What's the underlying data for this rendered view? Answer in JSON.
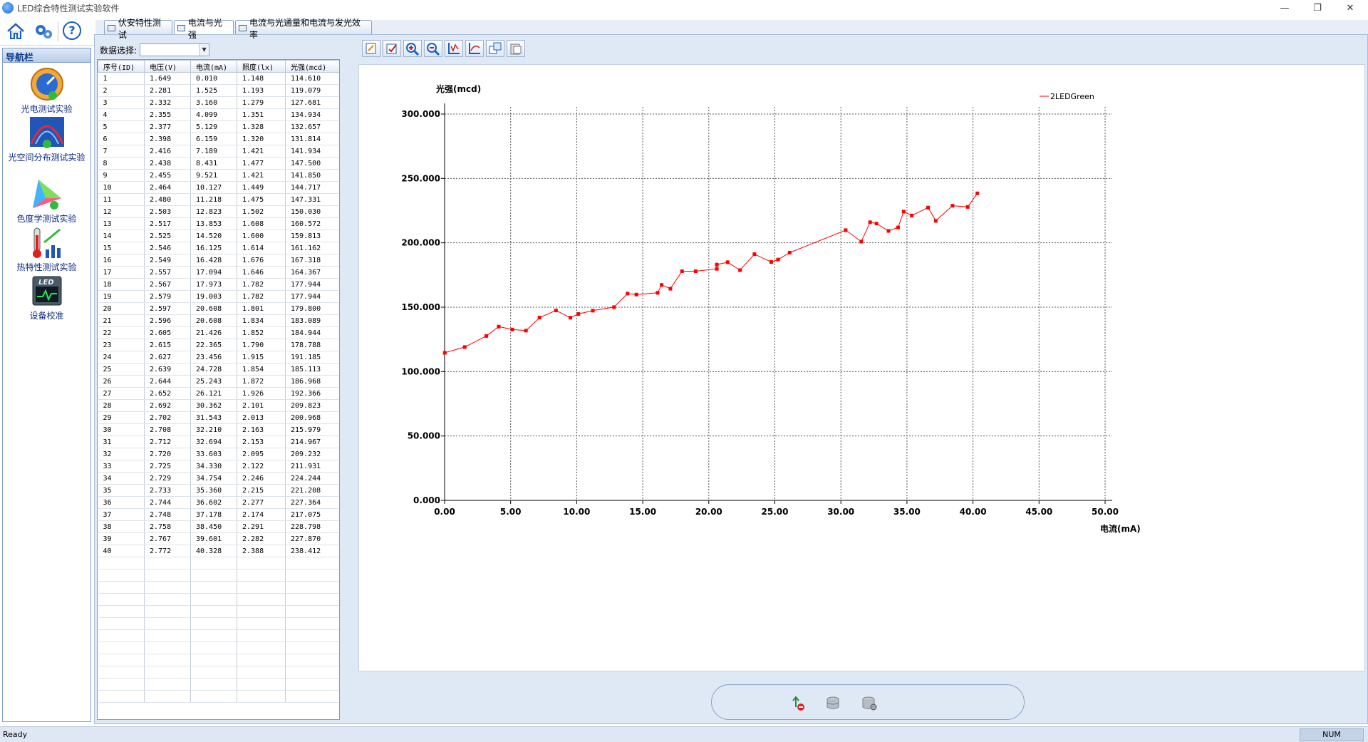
{
  "window": {
    "title": "LED综合特性测试实验软件",
    "minimize": "—",
    "maximize": "❐",
    "close": "✕"
  },
  "toolbar": {
    "icons": [
      "home-icon",
      "settings-icon",
      "help-icon"
    ],
    "help_glyph": "?"
  },
  "nav": {
    "header": "导航栏",
    "items": [
      {
        "label": "光电测试实验",
        "icon": "gauge-icon"
      },
      {
        "label": "光空间分布测试实验",
        "icon": "spatial-icon"
      },
      {
        "label": "色度学测试实验",
        "icon": "chromaticity-icon"
      },
      {
        "label": "热特性测试实验",
        "icon": "thermal-icon"
      },
      {
        "label": "设备校准",
        "icon": "calibration-icon"
      }
    ]
  },
  "tabs": [
    {
      "label": "伏安特性测试"
    },
    {
      "label": "电流与光强"
    },
    {
      "label": "电流与光通量和电流与发光效率"
    }
  ],
  "active_tab": 1,
  "data_select": {
    "label": "数据选择:",
    "value": ""
  },
  "table": {
    "columns": [
      "序号(ID)",
      "电压(V)",
      "电流(mA)",
      "照度(lx)",
      "光强(mcd)"
    ],
    "rows": [
      [
        "1",
        "1.649",
        "0.010",
        "1.148",
        "114.610"
      ],
      [
        "2",
        "2.281",
        "1.525",
        "1.193",
        "119.079"
      ],
      [
        "3",
        "2.332",
        "3.160",
        "1.279",
        "127.681"
      ],
      [
        "4",
        "2.355",
        "4.099",
        "1.351",
        "134.934"
      ],
      [
        "5",
        "2.377",
        "5.129",
        "1.328",
        "132.657"
      ],
      [
        "6",
        "2.398",
        "6.159",
        "1.320",
        "131.814"
      ],
      [
        "7",
        "2.416",
        "7.189",
        "1.421",
        "141.934"
      ],
      [
        "8",
        "2.438",
        "8.431",
        "1.477",
        "147.500"
      ],
      [
        "9",
        "2.455",
        "9.521",
        "1.421",
        "141.850"
      ],
      [
        "10",
        "2.464",
        "10.127",
        "1.449",
        "144.717"
      ],
      [
        "11",
        "2.480",
        "11.218",
        "1.475",
        "147.331"
      ],
      [
        "12",
        "2.503",
        "12.823",
        "1.502",
        "150.030"
      ],
      [
        "13",
        "2.517",
        "13.853",
        "1.608",
        "160.572"
      ],
      [
        "14",
        "2.525",
        "14.520",
        "1.600",
        "159.813"
      ],
      [
        "15",
        "2.546",
        "16.125",
        "1.614",
        "161.162"
      ],
      [
        "16",
        "2.549",
        "16.428",
        "1.676",
        "167.318"
      ],
      [
        "17",
        "2.557",
        "17.094",
        "1.646",
        "164.367"
      ],
      [
        "18",
        "2.567",
        "17.973",
        "1.782",
        "177.944"
      ],
      [
        "19",
        "2.579",
        "19.003",
        "1.782",
        "177.944"
      ],
      [
        "20",
        "2.597",
        "20.608",
        "1.801",
        "179.800"
      ],
      [
        "21",
        "2.596",
        "20.608",
        "1.834",
        "183.089"
      ],
      [
        "22",
        "2.605",
        "21.426",
        "1.852",
        "184.944"
      ],
      [
        "23",
        "2.615",
        "22.365",
        "1.790",
        "178.788"
      ],
      [
        "24",
        "2.627",
        "23.456",
        "1.915",
        "191.185"
      ],
      [
        "25",
        "2.639",
        "24.728",
        "1.854",
        "185.113"
      ],
      [
        "26",
        "2.644",
        "25.243",
        "1.872",
        "186.968"
      ],
      [
        "27",
        "2.652",
        "26.121",
        "1.926",
        "192.366"
      ],
      [
        "28",
        "2.692",
        "30.362",
        "2.101",
        "209.823"
      ],
      [
        "29",
        "2.702",
        "31.543",
        "2.013",
        "200.968"
      ],
      [
        "30",
        "2.708",
        "32.210",
        "2.163",
        "215.979"
      ],
      [
        "31",
        "2.712",
        "32.694",
        "2.153",
        "214.967"
      ],
      [
        "32",
        "2.720",
        "33.603",
        "2.095",
        "209.232"
      ],
      [
        "33",
        "2.725",
        "34.330",
        "2.122",
        "211.931"
      ],
      [
        "34",
        "2.729",
        "34.754",
        "2.246",
        "224.244"
      ],
      [
        "35",
        "2.733",
        "35.360",
        "2.215",
        "221.208"
      ],
      [
        "36",
        "2.744",
        "36.602",
        "2.277",
        "227.364"
      ],
      [
        "37",
        "2.748",
        "37.178",
        "2.174",
        "217.075"
      ],
      [
        "38",
        "2.758",
        "38.450",
        "2.291",
        "228.798"
      ],
      [
        "39",
        "2.767",
        "39.601",
        "2.282",
        "227.870"
      ],
      [
        "40",
        "2.772",
        "40.328",
        "2.388",
        "238.412"
      ]
    ],
    "empty_rows": 12
  },
  "chart_toolbar": {
    "buttons": [
      "edit-icon",
      "select-icon",
      "zoom-in-icon",
      "zoom-out-icon",
      "axis-icon",
      "curve-icon",
      "copy-icon",
      "clipboard-icon"
    ]
  },
  "chart_data": {
    "type": "line",
    "ylabel": "光强(mcd)",
    "xlabel": "电流(mA)",
    "xlim": [
      0,
      50
    ],
    "ylim": [
      0,
      300
    ],
    "xticks": [
      "0.00",
      "5.00",
      "10.00",
      "15.00",
      "20.00",
      "25.00",
      "30.00",
      "35.00",
      "40.00",
      "45.00",
      "50.00"
    ],
    "yticks": [
      "0.000",
      "50.000",
      "100.000",
      "150.000",
      "200.000",
      "250.000",
      "300.000"
    ],
    "grid": true,
    "legend_position": "top-right",
    "series": [
      {
        "name": "2LEDGreen",
        "color": "#ff0000",
        "x": [
          0.01,
          1.525,
          3.16,
          4.099,
          5.129,
          6.159,
          7.189,
          8.431,
          9.521,
          10.127,
          11.218,
          12.823,
          13.853,
          14.52,
          16.125,
          16.428,
          17.094,
          17.973,
          19.003,
          20.608,
          20.608,
          21.426,
          22.365,
          23.456,
          24.728,
          25.243,
          26.121,
          30.362,
          31.543,
          32.21,
          32.694,
          33.603,
          34.33,
          34.754,
          35.36,
          36.602,
          37.178,
          38.45,
          39.601,
          40.328
        ],
        "y": [
          114.61,
          119.079,
          127.681,
          134.934,
          132.657,
          131.814,
          141.934,
          147.5,
          141.85,
          144.717,
          147.331,
          150.03,
          160.572,
          159.813,
          161.162,
          167.318,
          164.367,
          177.944,
          177.944,
          179.8,
          183.089,
          184.944,
          178.788,
          191.185,
          185.113,
          186.968,
          192.366,
          209.823,
          200.968,
          215.979,
          214.967,
          209.232,
          211.931,
          224.244,
          221.208,
          227.364,
          217.075,
          228.798,
          227.87,
          238.412
        ]
      }
    ]
  },
  "control_bar": {
    "icons": [
      "usb-disconnect-icon",
      "database-icon",
      "database-settings-icon"
    ]
  },
  "status": {
    "text": "Ready",
    "num": "NUM"
  }
}
